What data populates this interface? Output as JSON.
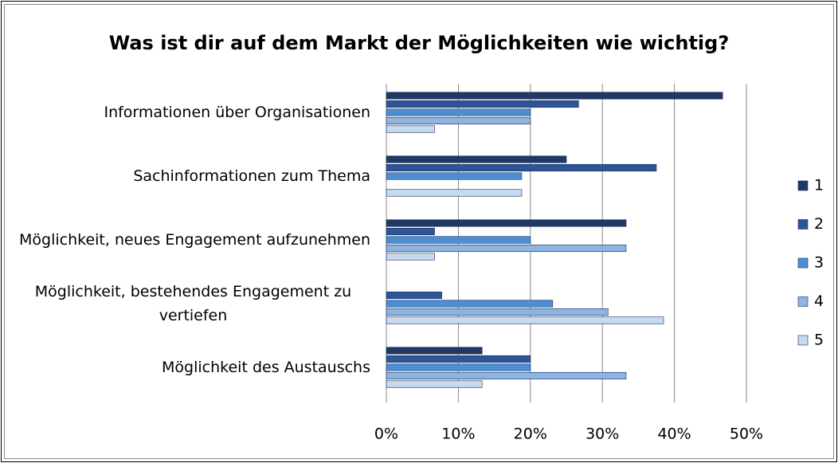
{
  "chart_data": {
    "type": "bar",
    "orientation": "horizontal",
    "title": "Was ist dir auf dem Markt der Möglichkeiten wie wichtig?",
    "categories": [
      "Informationen über Organisationen",
      "Sachinformationen zum Thema",
      "Möglichkeit, neues Engagement aufzunehmen",
      "Möglichkeit, bestehendes Engagement zu vertiefen",
      "Möglichkeit des Austauschs"
    ],
    "series": [
      {
        "name": "1",
        "color": "#1f3864",
        "values": [
          46.7,
          25,
          33.3,
          0,
          13.3
        ]
      },
      {
        "name": "2",
        "color": "#2e5597",
        "values": [
          26.7,
          37.5,
          6.7,
          7.7,
          20
        ]
      },
      {
        "name": "3",
        "color": "#4a8fd6",
        "values": [
          20,
          18.8,
          20,
          23.1,
          20
        ]
      },
      {
        "name": "4",
        "color": "#8db4e2",
        "values": [
          20,
          0,
          33.3,
          30.8,
          33.3
        ]
      },
      {
        "name": "5",
        "color": "#c5d9f1",
        "values": [
          6.7,
          18.8,
          6.7,
          38.5,
          13.3
        ]
      }
    ],
    "xlim": [
      0,
      50
    ],
    "xticks": [
      {
        "value": 0,
        "label": "0%"
      },
      {
        "value": 10,
        "label": "10%"
      },
      {
        "value": 20,
        "label": "20%"
      },
      {
        "value": 30,
        "label": "30%"
      },
      {
        "value": 40,
        "label": "40%"
      },
      {
        "value": 50,
        "label": "50%"
      }
    ],
    "grid": true,
    "legend": "right"
  }
}
